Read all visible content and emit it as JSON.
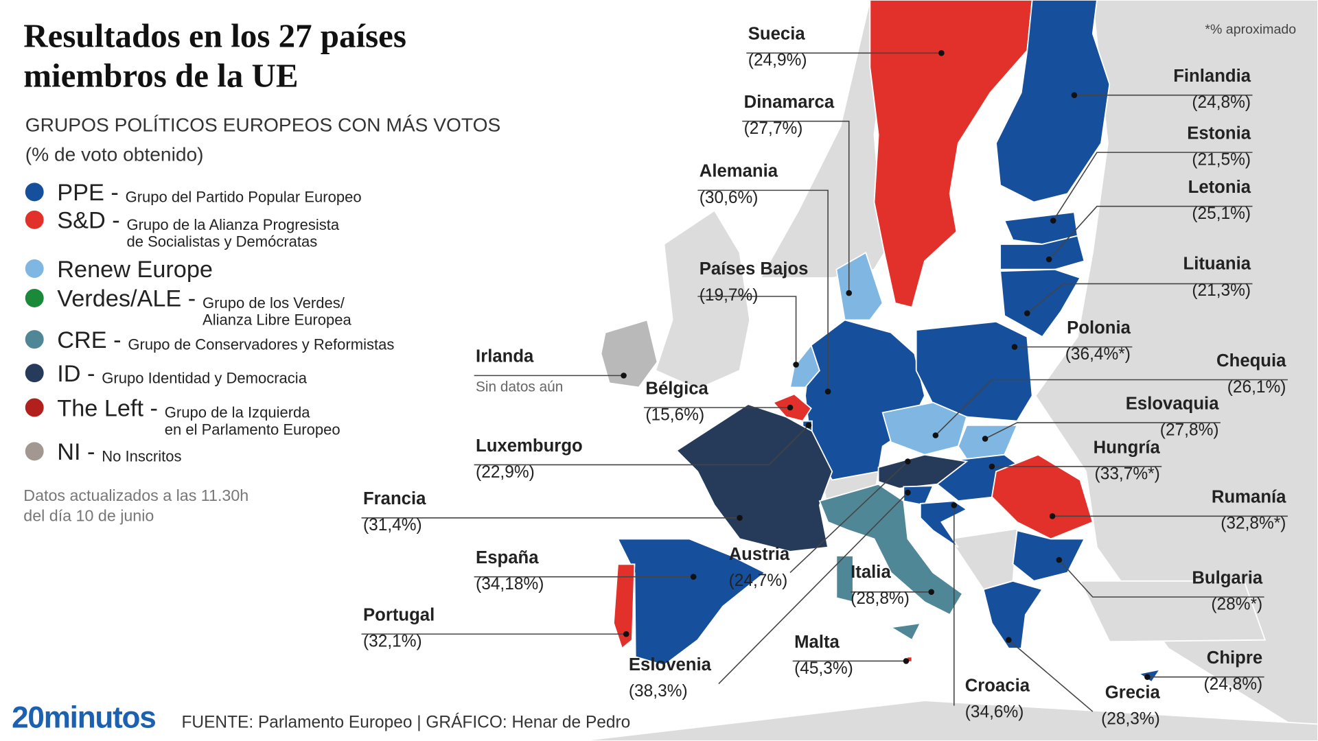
{
  "header": {
    "title": [
      "Resultados en los 27 países",
      "miembros de la UE"
    ],
    "subtitle": [
      "GRUPOS POLÍTICOS EUROPEOS CON MÁS VOTOS",
      "(% de voto obtenido)"
    ],
    "footnote": "*% aproximado"
  },
  "legend": [
    {
      "code": "PPE -",
      "desc": [
        "Grupo del Partido Popular Europeo"
      ],
      "color": "#164f9c"
    },
    {
      "code": "S&D -",
      "desc": [
        "Grupo de la Alianza Progresista",
        "de Socialistas y Demócratas"
      ],
      "color": "#e2312b"
    },
    {
      "code": "Renew Europe",
      "desc": [],
      "color": "#80b7e2"
    },
    {
      "code": "Verdes/ALE -",
      "desc": [
        "Grupo de los Verdes/",
        "Alianza Libre Europea"
      ],
      "color": "#1a8a3a"
    },
    {
      "code": "CRE -",
      "desc": [
        "Grupo de Conservadores y Reformistas"
      ],
      "color": "#4f8797"
    },
    {
      "code": "ID -",
      "desc": [
        "Grupo Identidad y Democracia"
      ],
      "color": "#263a5a"
    },
    {
      "code": "The Left -",
      "desc": [
        "Grupo de la Izquierda",
        "en el Parlamento Europeo"
      ],
      "color": "#b2201d"
    },
    {
      "code": "NI -",
      "desc": [
        "No Inscritos"
      ],
      "color": "#a39891"
    }
  ],
  "note": [
    "Datos actualizados a las 11.30h",
    "del día 10 de junio"
  ],
  "countries": [
    {
      "name": "Suecia",
      "result": "(24,9%)",
      "color": "#e2312b"
    },
    {
      "name": "Finlandia",
      "result": "(24,8%)",
      "color": "#164f9c"
    },
    {
      "name": "Dinamarca",
      "result": "(27,7%)",
      "color": "#80b7e2"
    },
    {
      "name": "Estonia",
      "result": "(21,5%)",
      "color": "#164f9c"
    },
    {
      "name": "Alemania",
      "result": "(30,6%)",
      "color": "#164f9c"
    },
    {
      "name": "Letonia",
      "result": "(25,1%)",
      "color": "#164f9c"
    },
    {
      "name": "Países Bajos",
      "result": "(19,7%)",
      "color": "#80b7e2"
    },
    {
      "name": "Lituania",
      "result": "(21,3%)",
      "color": "#164f9c"
    },
    {
      "name": "Polonia",
      "result": "(36,4%*)",
      "color": "#164f9c"
    },
    {
      "name": "Irlanda",
      "result": "Sin datos aún",
      "color": "#b9b9b9"
    },
    {
      "name": "Chequia",
      "result": "(26,1%)",
      "color": "#80b7e2"
    },
    {
      "name": "Bélgica",
      "result": "(15,6%)",
      "color": "#e2312b"
    },
    {
      "name": "Eslovaquia",
      "result": "(27,8%)",
      "color": "#80b7e2"
    },
    {
      "name": "Luxemburgo",
      "result": "(22,9%)",
      "color": "#164f9c"
    },
    {
      "name": "Hungría",
      "result": "(33,7%*)",
      "color": "#164f9c"
    },
    {
      "name": "Francia",
      "result": "(31,4%)",
      "color": "#263a5a"
    },
    {
      "name": "Rumanía",
      "result": "(32,8%*)",
      "color": "#e2312b"
    },
    {
      "name": "España",
      "result": "(34,18%)",
      "color": "#164f9c"
    },
    {
      "name": "Austria",
      "result": "(24,7%)",
      "color": "#263a5a"
    },
    {
      "name": "Italia",
      "result": "(28,8%)",
      "color": "#4f8797"
    },
    {
      "name": "Bulgaria",
      "result": "(28%*)",
      "color": "#164f9c"
    },
    {
      "name": "Portugal",
      "result": "(32,1%)",
      "color": "#e2312b"
    },
    {
      "name": "Malta",
      "result": "(45,3%)",
      "color": "#e2312b"
    },
    {
      "name": "Eslovenia",
      "result": "(38,3%)",
      "color": "#164f9c"
    },
    {
      "name": "Chipre",
      "result": "(24,8%)",
      "color": "#164f9c"
    },
    {
      "name": "Croacia",
      "result": "(34,6%)",
      "color": "#164f9c"
    },
    {
      "name": "Grecia",
      "result": "(28,3%)",
      "color": "#164f9c"
    }
  ],
  "footer": {
    "logo": "20minutos",
    "credits": "FUENTE: Parlamento Europeo  |  GRÁFICO: Henar de Pedro"
  }
}
